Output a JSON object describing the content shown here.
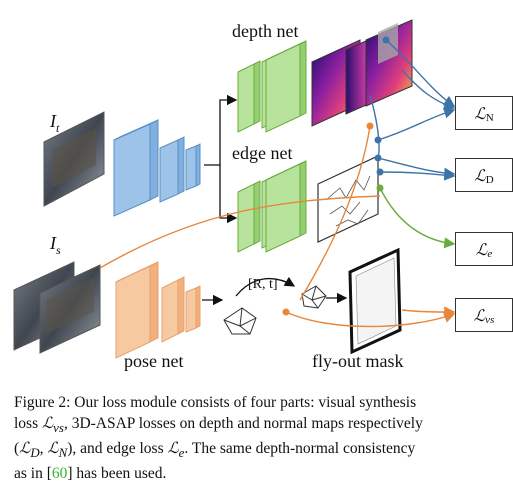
{
  "labels": {
    "it_symbol": "I",
    "it_sub": "t",
    "is_symbol": "I",
    "is_sub": "s",
    "depth_net": "depth net",
    "edge_net": "edge net",
    "pose_net": "pose net",
    "flyout_mask": "fly-out mask",
    "rt": "[R, t]"
  },
  "losses": [
    {
      "symbol": "ℒ",
      "sub": "N"
    },
    {
      "symbol": "ℒ",
      "sub": "D"
    },
    {
      "symbol": "ℒ",
      "sub": "e"
    },
    {
      "symbol": "ℒ",
      "sub": "vs"
    }
  ],
  "colors": {
    "encoder_blue": "#9ec3e8",
    "net_green": "#b7e39d",
    "pose_orange": "#f7c9a0",
    "arrow_blue": "#3c73a8",
    "arrow_green": "#6aab3a",
    "arrow_orange": "#e8863a",
    "ref_green": "#2fb82f"
  },
  "caption": {
    "line1": "Figure 2: Our loss module consists of four parts: visual synthesis",
    "line2_a": "loss ",
    "line2_m": "ℒ",
    "line2_msub": "vs",
    "line2_b": ", 3D-ASAP losses on depth and normal maps respectively",
    "line3_a": "(",
    "line3_m1": "ℒ",
    "line3_m1sub": "D",
    "line3_sep": ", ",
    "line3_m2": "ℒ",
    "line3_m2sub": "N",
    "line3_b": "), and edge loss ",
    "line3_m3": "ℒ",
    "line3_m3sub": "e",
    "line3_c": ". The same depth-normal consistency",
    "line4_a": "as in [",
    "line4_ref": "60",
    "line4_b": "] has been used."
  }
}
